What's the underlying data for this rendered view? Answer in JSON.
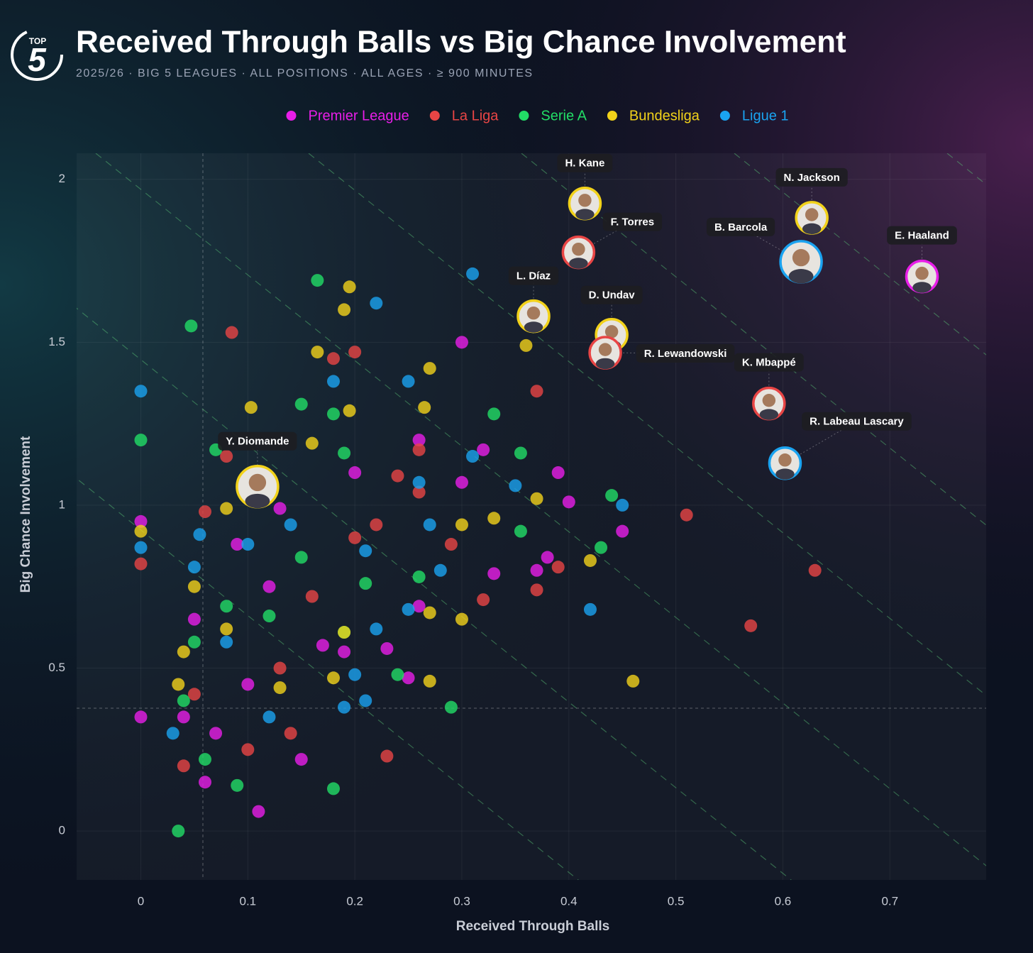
{
  "logo": {
    "top": "TOP",
    "number": "5"
  },
  "chart_data": {
    "type": "scatter",
    "title": "Received Through Balls vs Big Chance Involvement",
    "subtitle": "2025/26 · BIG 5 LEAGUES · ALL POSITIONS · ALL AGES · ≥ 900 MINUTES",
    "x_label": "Received Through Balls",
    "y_label": "Big Chance Involvement",
    "xlim": [
      -0.06,
      0.79
    ],
    "ylim": [
      -0.15,
      2.08
    ],
    "xticks": [
      0,
      0.1,
      0.2,
      0.3,
      0.4,
      0.5,
      0.6,
      0.7
    ],
    "yticks": [
      0,
      0.5,
      1,
      1.5,
      2
    ],
    "grid": true,
    "reference_lines": {
      "x": 0.058,
      "y": 0.377
    },
    "series": [
      {
        "name": "Premier League",
        "color": "#e81ee8",
        "x": [
          0.3,
          0.26,
          0.32,
          0.2,
          0.4,
          0.45,
          0.39,
          0.3,
          0.13,
          0.38,
          0.33,
          0.23,
          0.25,
          0.17,
          0.12,
          0.09,
          0.05,
          0.04,
          0.07,
          0.1,
          0.0,
          0.0,
          0.06,
          0.11,
          0.26,
          0.15,
          0.19,
          0.37
        ],
        "values": [
          1.5,
          1.2,
          1.17,
          1.1,
          1.01,
          0.92,
          1.1,
          1.07,
          0.99,
          0.84,
          0.79,
          0.56,
          0.47,
          0.57,
          0.75,
          0.88,
          0.65,
          0.35,
          0.3,
          0.45,
          0.95,
          0.35,
          0.15,
          0.06,
          0.69,
          0.22,
          0.55,
          0.8
        ]
      },
      {
        "name": "La Liga",
        "color": "#e84545",
        "x": [
          0.085,
          0.18,
          0.2,
          0.37,
          0.51,
          0.63,
          0.57,
          0.26,
          0.24,
          0.26,
          0.29,
          0.39,
          0.37,
          0.16,
          0.08,
          0.06,
          0.13,
          0.1,
          0.14,
          0.04,
          0.32,
          0.2,
          0.23,
          0.0,
          0.05,
          0.22
        ],
        "values": [
          1.53,
          1.45,
          1.47,
          1.35,
          0.97,
          0.8,
          0.63,
          1.17,
          1.09,
          1.04,
          0.88,
          0.81,
          0.74,
          0.72,
          1.15,
          0.98,
          0.5,
          0.25,
          0.3,
          0.2,
          0.71,
          0.9,
          0.23,
          0.82,
          0.42,
          0.94
        ]
      },
      {
        "name": "Serie A",
        "color": "#22dd66",
        "x": [
          0.165,
          0.047,
          0.15,
          0.18,
          0.07,
          0.19,
          0.33,
          0.355,
          0.44,
          0.43,
          0.355,
          0.26,
          0.21,
          0.15,
          0.12,
          0.08,
          0.05,
          0.04,
          0.06,
          0.09,
          0.035,
          0.24,
          0.29,
          0.0,
          0.18,
          0.19
        ],
        "values": [
          1.69,
          1.55,
          1.31,
          1.28,
          1.17,
          1.16,
          1.28,
          1.16,
          1.03,
          0.87,
          0.92,
          0.78,
          0.76,
          0.84,
          0.66,
          0.69,
          0.58,
          0.4,
          0.22,
          0.14,
          0.0,
          0.48,
          0.38,
          1.2,
          0.13,
          0.61
        ]
      },
      {
        "name": "Bundesliga",
        "color": "#f2d21a",
        "x": [
          0.195,
          0.19,
          0.165,
          0.27,
          0.265,
          0.195,
          0.103,
          0.16,
          0.37,
          0.08,
          0.3,
          0.33,
          0.36,
          0.46,
          0.27,
          0.18,
          0.3,
          0.27,
          0.08,
          0.05,
          0.0,
          0.035,
          0.19,
          0.13,
          0.42,
          0.04
        ],
        "values": [
          1.67,
          1.6,
          1.47,
          1.42,
          1.3,
          1.29,
          1.3,
          1.19,
          1.02,
          0.99,
          0.94,
          0.96,
          1.49,
          0.46,
          0.46,
          0.47,
          0.65,
          0.67,
          0.62,
          0.75,
          0.92,
          0.45,
          0.61,
          0.44,
          0.83,
          0.55
        ]
      },
      {
        "name": "Ligue 1",
        "color": "#1aa3f0",
        "x": [
          0.31,
          0.22,
          0.18,
          0.25,
          0.31,
          0.26,
          0.45,
          0.42,
          0.35,
          0.27,
          0.21,
          0.28,
          0.25,
          0.22,
          0.14,
          0.1,
          0.05,
          0.0,
          0.0,
          0.03,
          0.2,
          0.21,
          0.19,
          0.08,
          0.12,
          0.055
        ],
        "values": [
          1.71,
          1.62,
          1.38,
          1.38,
          1.15,
          1.07,
          1.0,
          0.68,
          1.06,
          0.94,
          0.86,
          0.8,
          0.68,
          0.62,
          0.94,
          0.88,
          0.81,
          0.87,
          1.35,
          0.3,
          0.48,
          0.4,
          0.38,
          0.58,
          0.35,
          0.91
        ]
      }
    ],
    "highlights": [
      {
        "name": "H. Kane",
        "series": 3,
        "x": 0.415,
        "y": 1.926
      },
      {
        "name": "F. Torres",
        "series": 1,
        "x": 0.409,
        "y": 1.776
      },
      {
        "name": "N. Jackson",
        "series": 3,
        "x": 0.627,
        "y": 1.882
      },
      {
        "name": "B. Barcola",
        "series": 4,
        "x": 0.617,
        "y": 1.747
      },
      {
        "name": "E. Haaland",
        "series": 0,
        "x": 0.73,
        "y": 1.702
      },
      {
        "name": "L. Díaz",
        "series": 3,
        "x": 0.367,
        "y": 1.58
      },
      {
        "name": "D. Undav",
        "series": 3,
        "x": 0.44,
        "y": 1.523
      },
      {
        "name": "R. Lewandowski",
        "series": 1,
        "x": 0.434,
        "y": 1.468
      },
      {
        "name": "K. Mbappé",
        "series": 1,
        "x": 0.587,
        "y": 1.312
      },
      {
        "name": "R. Labeau Lascary",
        "series": 4,
        "x": 0.602,
        "y": 1.129
      },
      {
        "name": "Y. Diomande",
        "series": 3,
        "x": 0.109,
        "y": 1.057
      }
    ]
  }
}
